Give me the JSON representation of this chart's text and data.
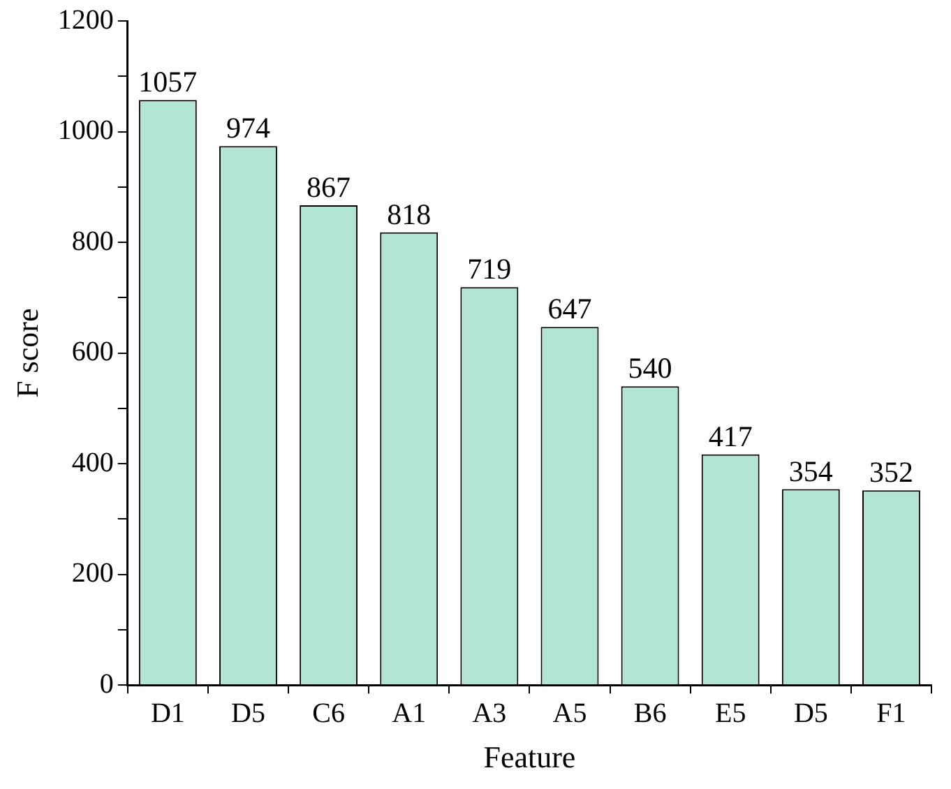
{
  "chart_data": {
    "type": "bar",
    "xlabel": "Feature",
    "ylabel": "F score",
    "categories": [
      "D1",
      "D5",
      "C6",
      "A1",
      "A3",
      "A5",
      "B6",
      "E5",
      "D5",
      "F1"
    ],
    "values": [
      1057,
      974,
      867,
      818,
      719,
      647,
      540,
      417,
      354,
      352
    ],
    "color": "#b3e5d4",
    "ylim": [
      0,
      1200
    ],
    "yticks": [
      0,
      {
        "value": 100,
        "label": null
      },
      200,
      {
        "value": 300,
        "label": null
      },
      400,
      {
        "value": 500,
        "label": null
      },
      600,
      {
        "value": 700,
        "label": null
      },
      800,
      {
        "value": 900,
        "label": null
      },
      1000,
      {
        "value": 1100,
        "label": null
      },
      1200
    ],
    "grid": false,
    "legend": false,
    "data_labels": true
  }
}
